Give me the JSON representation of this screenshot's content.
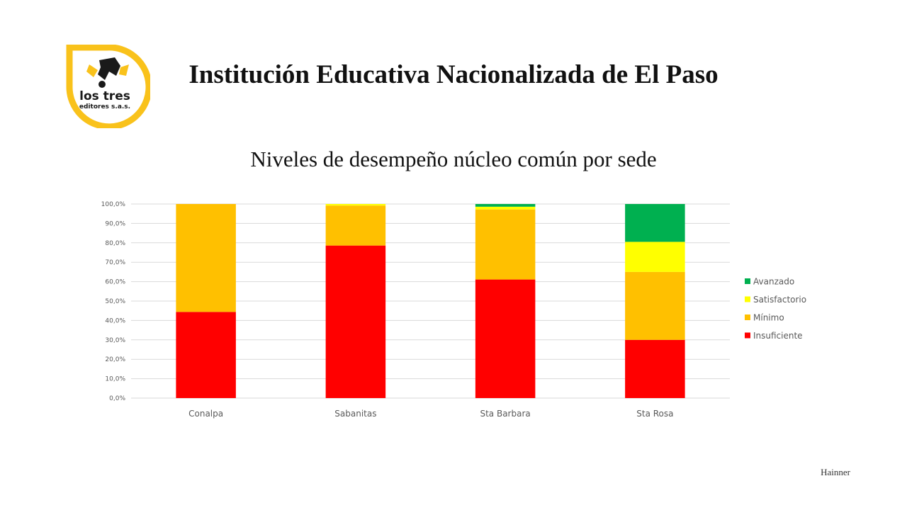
{
  "slide": {
    "title": "Institución Educativa Nacionalizada de El Paso",
    "subtitle": "Niveles de desempeño núcleo común por sede",
    "footer": "Hainner"
  },
  "logo": {
    "line1": "los tres",
    "line2": "editores s.a.s.",
    "ring_color": "#F9C21B",
    "icon": "ink-splash-icon"
  },
  "chart_data": {
    "type": "bar",
    "stacked": true,
    "categories": [
      "Conalpa",
      "Sabanitas",
      "Sta Barbara",
      "Sta Rosa"
    ],
    "series": [
      {
        "name": "Insuficiente",
        "color": "#FF0000",
        "values": [
          44.4,
          78.6,
          61.1,
          30.0
        ]
      },
      {
        "name": "Mínimo",
        "color": "#FFC000",
        "values": [
          55.6,
          20.6,
          36.1,
          35.0
        ]
      },
      {
        "name": "Satisfactorio",
        "color": "#FFFF00",
        "values": [
          0.0,
          0.8,
          1.4,
          15.5
        ]
      },
      {
        "name": "Avanzado",
        "color": "#00B050",
        "values": [
          0.0,
          0.0,
          1.4,
          19.5
        ]
      }
    ],
    "ylim": [
      0,
      100
    ],
    "yticks": [
      "0,0%",
      "10,0%",
      "20,0%",
      "30,0%",
      "40,0%",
      "50,0%",
      "60,0%",
      "70,0%",
      "80,0%",
      "90,0%",
      "100,0%"
    ],
    "grid": true,
    "legend": "right",
    "legend_order": [
      "Avanzado",
      "Satisfactorio",
      "Mínimo",
      "Insuficiente"
    ]
  }
}
